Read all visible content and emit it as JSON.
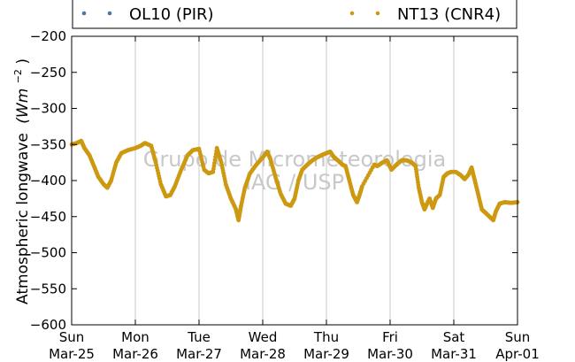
{
  "chart_data": {
    "type": "scatter",
    "ylabel": "Atmospheric longwave",
    "ylabel_unit": "(Wm",
    "ylabel_unit_exp": "−2",
    "ylabel_unit_close": ")",
    "ylim": [
      -600,
      -200
    ],
    "yticks": [
      -200,
      -250,
      -300,
      -350,
      -400,
      -450,
      -500,
      -550,
      -600
    ],
    "ytick_labels": [
      "−200",
      "−250",
      "−300",
      "−350",
      "−400",
      "−450",
      "−500",
      "−550",
      "−600"
    ],
    "xlim": [
      0,
      7
    ],
    "xticks": [
      {
        "day": "Sun",
        "date": "Mar-25"
      },
      {
        "day": "Mon",
        "date": "Mar-26"
      },
      {
        "day": "Tue",
        "date": "Mar-27"
      },
      {
        "day": "Wed",
        "date": "Mar-28"
      },
      {
        "day": "Thu",
        "date": "Mar-29"
      },
      {
        "day": "Fri",
        "date": "Mar-30"
      },
      {
        "day": "Sat",
        "date": "Mar-31"
      },
      {
        "day": "Sun",
        "date": "Apr-01"
      }
    ],
    "grid": "vertical",
    "legend_position": "top",
    "series": [
      {
        "name": "OL10 (PIR)",
        "color": "#4477aa",
        "points": []
      },
      {
        "name": "NT13 (CNR4)",
        "color": "#cc9911",
        "points": [
          [
            0.0,
            -350
          ],
          [
            0.08,
            -348
          ],
          [
            0.15,
            -345
          ],
          [
            0.2,
            -355
          ],
          [
            0.28,
            -365
          ],
          [
            0.35,
            -380
          ],
          [
            0.42,
            -395
          ],
          [
            0.5,
            -405
          ],
          [
            0.56,
            -410
          ],
          [
            0.62,
            -400
          ],
          [
            0.7,
            -375
          ],
          [
            0.78,
            -362
          ],
          [
            0.88,
            -358
          ],
          [
            1.0,
            -355
          ],
          [
            1.08,
            -352
          ],
          [
            1.15,
            -348
          ],
          [
            1.25,
            -352
          ],
          [
            1.32,
            -375
          ],
          [
            1.4,
            -405
          ],
          [
            1.48,
            -422
          ],
          [
            1.55,
            -420
          ],
          [
            1.62,
            -408
          ],
          [
            1.72,
            -385
          ],
          [
            1.82,
            -365
          ],
          [
            1.9,
            -358
          ],
          [
            2.0,
            -356
          ],
          [
            2.08,
            -385
          ],
          [
            2.15,
            -390
          ],
          [
            2.22,
            -388
          ],
          [
            2.28,
            -355
          ],
          [
            2.35,
            -375
          ],
          [
            2.42,
            -405
          ],
          [
            2.5,
            -425
          ],
          [
            2.58,
            -440
          ],
          [
            2.62,
            -455
          ],
          [
            2.66,
            -435
          ],
          [
            2.72,
            -410
          ],
          [
            2.8,
            -390
          ],
          [
            2.9,
            -378
          ],
          [
            3.0,
            -368
          ],
          [
            3.07,
            -360
          ],
          [
            3.12,
            -370
          ],
          [
            3.2,
            -395
          ],
          [
            3.28,
            -418
          ],
          [
            3.36,
            -432
          ],
          [
            3.44,
            -435
          ],
          [
            3.5,
            -425
          ],
          [
            3.56,
            -400
          ],
          [
            3.62,
            -385
          ],
          [
            3.7,
            -378
          ],
          [
            3.78,
            -372
          ],
          [
            3.85,
            -368
          ],
          [
            3.92,
            -365
          ],
          [
            4.0,
            -362
          ],
          [
            4.06,
            -360
          ],
          [
            4.12,
            -368
          ],
          [
            4.18,
            -372
          ],
          [
            4.25,
            -378
          ],
          [
            4.3,
            -380
          ],
          [
            4.36,
            -400
          ],
          [
            4.42,
            -420
          ],
          [
            4.48,
            -430
          ],
          [
            4.52,
            -420
          ],
          [
            4.56,
            -408
          ],
          [
            4.75,
            -378
          ],
          [
            4.8,
            -380
          ],
          [
            4.88,
            -375
          ],
          [
            4.95,
            -372
          ],
          [
            5.02,
            -385
          ],
          [
            5.1,
            -378
          ],
          [
            5.18,
            -372
          ],
          [
            5.26,
            -372
          ],
          [
            5.34,
            -375
          ],
          [
            5.4,
            -380
          ],
          [
            5.45,
            -410
          ],
          [
            5.5,
            -430
          ],
          [
            5.54,
            -440
          ],
          [
            5.58,
            -432
          ],
          [
            5.62,
            -425
          ],
          [
            5.67,
            -438
          ],
          [
            5.72,
            -425
          ],
          [
            5.78,
            -420
          ],
          [
            5.84,
            -395
          ],
          [
            5.9,
            -390
          ],
          [
            5.96,
            -388
          ],
          [
            6.03,
            -388
          ],
          [
            6.1,
            -392
          ],
          [
            6.17,
            -398
          ],
          [
            6.23,
            -392
          ],
          [
            6.28,
            -382
          ],
          [
            6.33,
            -400
          ],
          [
            6.38,
            -418
          ],
          [
            6.44,
            -440
          ],
          [
            6.5,
            -445
          ],
          [
            6.56,
            -450
          ],
          [
            6.62,
            -455
          ],
          [
            6.66,
            -443
          ],
          [
            6.72,
            -432
          ],
          [
            6.8,
            -430
          ],
          [
            6.9,
            -431
          ],
          [
            7.0,
            -430
          ]
        ]
      }
    ],
    "watermark": [
      "Grupo de Micrometeorologia",
      "IAG / USP"
    ]
  }
}
